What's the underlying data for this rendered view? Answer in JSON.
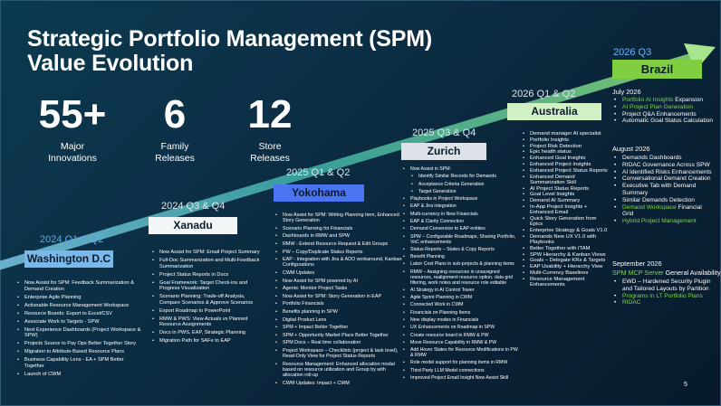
{
  "title_line1": "Strategic Portfolio Management (SPM)",
  "title_line2": "Value Evolution",
  "stats": [
    {
      "num": "55+",
      "label_l1": "Major",
      "label_l2": "Innovations"
    },
    {
      "num": "6",
      "label_l1": "Family",
      "label_l2": "Releases"
    },
    {
      "num": "12",
      "label_l1": "Store",
      "label_l2": "Releases"
    }
  ],
  "colors": {
    "arrow": "#3fa7a0",
    "green": "#7fd84a",
    "blue": "#5aa9ea"
  },
  "releases": {
    "washington": {
      "period": "2024 Q1 & Q2",
      "name": "Washington D.C",
      "items": [
        "Now Assist for SPM: Feedback Summarization & Demand Creation",
        "Enterprise Agile Planning",
        "Actionable Resource Management Workspace",
        "Resource Boards: Export to Excel/CSV",
        "Associate Work to Targets - SPW",
        "Next Experience Dashboards (Project Workspace & SPW)",
        "Projects Source to Pay Ops Better Together Story",
        "Migration to Attribute-Based Resource Plans",
        "Business Capability Lens - EA + SPM Better Together",
        "Launch of CWM"
      ]
    },
    "xanadu": {
      "period": "2024 Q3 & Q4",
      "name": "Xanadu",
      "items": [
        "Now Assist for SPM: Email Project Summary",
        "Full-Doc Summarization and Multi-Feedback Summarization",
        "Project Status Reports in Docs",
        "Goal Framework: Target Check-ins and Progress Visualization",
        "Scenario Planning: Trade-off Analysis, Compare Scenarios & Approve Scenarios",
        "Export Roadmap to PowerPoint",
        "RMW & PWS: View Actuals vs Planned Resource Assignments",
        "Docs in PWS, EAP, Strategic Planning",
        "Migration Path for SAFe to EAP"
      ]
    },
    "yokohama": {
      "period": "2025 Q1 & Q2",
      "name": "Yokohama",
      "items": [
        "Now Assist for SPM: Writing Planning Item, Enhanced Story Generation",
        "Scenario Planning for Financials",
        "Dashboards in RMW and SPW",
        "RMW - Extend Resource Request & Edit Groups",
        "PW – Copy/Duplicate Status Reports",
        "EAP - Integration with Jira & ADO workaround, Kanban Configurations",
        "CWM Updates",
        "Now Assist for SPM powered by AI",
        "Agents: Monitor Project Tasks",
        "Now Assist for SPM: Story Generation in EAP",
        "Portfolio Financials",
        "Benefits planning in SPW",
        "Digital Product Lens",
        "SPM + Impact Better Together",
        "SPM + Opportunity Market Place Better Together",
        "SPM Docs – Real time collaboration",
        "Project Workspace – Checklists (project & task level), Read-Only View for Project Status Reports",
        "Resource Management: Enhanced allocation modal based on resource utilization and Group by with allocation roll-up",
        "CWM Updates: Impact + CWM"
      ]
    },
    "zurich": {
      "period": "2025 Q3 & Q4",
      "name": "Zurich",
      "items": [
        {
          "text": "Now Assist in SPM:",
          "indent": false
        },
        {
          "text": "Identify Similar Records for Demands",
          "indent": true
        },
        {
          "text": "Acceptance Criteria Generation",
          "indent": true
        },
        {
          "text": "Target Generation",
          "indent": true
        },
        {
          "text": "Playbooks in Project Workspace",
          "indent": false
        },
        {
          "text": "EAP & Jira integration",
          "indent": false
        },
        {
          "text": "Multi-currency in New Financials",
          "indent": false
        },
        {
          "text": "EAP & Clarity Connection",
          "indent": false
        },
        {
          "text": "Demand Conversion to EAP entities",
          "indent": false
        },
        {
          "text": "SPW – Configurable Roadmaps, Sharing Portfolio, VoC enhancements",
          "indent": false
        },
        {
          "text": "Status Reports – States & Copy Reports",
          "indent": false
        },
        {
          "text": "Benefit Planning",
          "indent": false
        },
        {
          "text": "Labor Cost Plans in sub-projects & planning items",
          "indent": false
        },
        {
          "text": "RMW – Assigning resources in unassigned resources, realignment resource option, data grid filtering, work notes and resource role editable",
          "indent": false
        },
        {
          "text": "AI Strategy in AI Control Tower",
          "indent": false
        },
        {
          "text": "Agile Sprint Planning in CWM",
          "indent": false
        },
        {
          "text": "Connected Work in CWM",
          "indent": false
        },
        {
          "text": "Financials on Planning Items",
          "indent": false
        },
        {
          "text": "New display modes in Financials",
          "indent": false
        },
        {
          "text": "UX Enhancements on Roadmap in SPW",
          "indent": false
        },
        {
          "text": "Create resource board in RMW & PW",
          "indent": false
        },
        {
          "text": "Move Resource Capability in RMW & PW",
          "indent": false
        },
        {
          "text": "Add Hover States for Resource Modifications in PW & RMW",
          "indent": false
        },
        {
          "text": "Role model support for planning items in RMW",
          "indent": false
        },
        {
          "text": "Third Party LLM Model connections",
          "indent": false
        },
        {
          "text": "Improved Project Email Insight Now Assist Skill",
          "indent": false
        }
      ]
    },
    "australia": {
      "period": "2026 Q1 & Q2",
      "name": "Australia",
      "items": [
        "Demand manager AI specialist",
        "Portfolio Insights",
        "Project Risk Detection",
        "Epic health status",
        "Enhanced Goal Insights",
        "Enhanced Project Insights",
        "Enhanced Project Status Reports",
        "Enhanced Demand Summarization Skill",
        "AI Project Status Reports",
        "Goal Level Insights",
        "Demand AI Summary",
        "In-App Project Insights + Enhanced Email",
        "Quick Story Generation from Epics",
        "Enterprise Strategy & Goals V1.0",
        "Demands New UX V1.0 with Playbooks",
        "Better Together with ITAM",
        "SPW Hierarchy & Kanban Views",
        "Goals – Delegate KRs & Targets",
        "EAP Usability + Hierarchy View",
        "Multi-Currency Baselines",
        "Resource Management Enhancements"
      ]
    },
    "brazil": {
      "period": "2026 Q3",
      "name": "Brazil",
      "groups": [
        {
          "heading": "July 2026",
          "items": [
            {
              "text": "Portfolio AI Insights",
              "suffix": " Expansion",
              "green": true
            },
            {
              "text": "AI Project Plan Generation",
              "suffix": "",
              "green": true
            },
            {
              "text": "Project Q&A Enhancements",
              "suffix": "",
              "green": false
            },
            {
              "text": "Automatic Goal Status Calculation",
              "suffix": "",
              "green": false
            }
          ]
        },
        {
          "heading": "August 2026",
          "items": [
            {
              "text": "Demands Dashboards",
              "suffix": "",
              "green": false
            },
            {
              "text": "RIDAC Governance Across SPW",
              "suffix": "",
              "green": false
            },
            {
              "text": "AI Identified Risks Enhancements",
              "suffix": "",
              "green": false
            },
            {
              "text": "Conversational Demand Creation",
              "suffix": "",
              "green": false
            },
            {
              "text": "Executive Tab with Demand Summary",
              "suffix": "",
              "green": false
            },
            {
              "text": "Similar Demands Detection",
              "suffix": "",
              "green": false
            },
            {
              "text": "Demand Workspace",
              "suffix": " Financial Grid",
              "green": true
            },
            {
              "text": "Hybrid Project Management",
              "suffix": "",
              "green": true
            }
          ]
        },
        {
          "heading": "September 2026",
          "heading_green": "SPM MCP Server",
          "heading_suffix": " General Availability",
          "items": [
            {
              "text": "EWD – Hardened Security Plugin and Tailored Layouts by Partition",
              "suffix": "",
              "green": false
            },
            {
              "text": "Programs in LT Portfolio Plans",
              "suffix": "",
              "green": true
            },
            {
              "text": "RIDAC",
              "suffix": "",
              "green": true
            }
          ]
        }
      ]
    }
  },
  "page_number": "5"
}
